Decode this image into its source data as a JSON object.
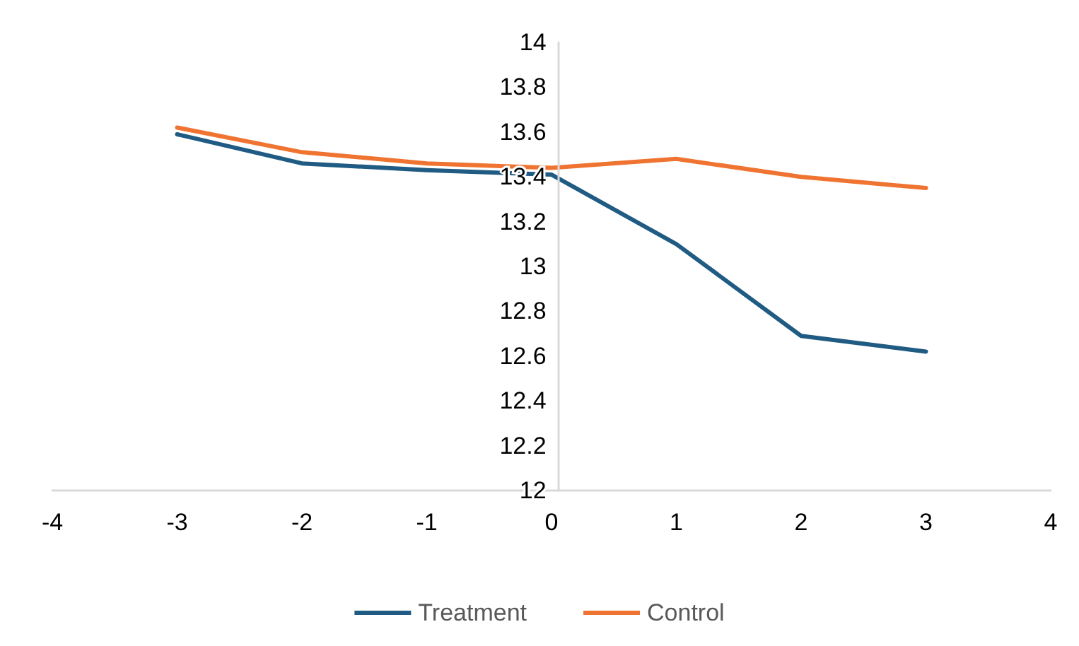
{
  "chart_data": {
    "type": "line",
    "x": [
      -3,
      -2,
      -1,
      0,
      1,
      2,
      3
    ],
    "series": [
      {
        "name": "Treatment",
        "color": "#1f5b82",
        "values": [
          13.59,
          13.46,
          13.43,
          13.41,
          13.1,
          12.69,
          12.62
        ]
      },
      {
        "name": "Control",
        "color": "#f07431",
        "values": [
          13.62,
          13.51,
          13.46,
          13.44,
          13.48,
          13.4,
          13.35
        ]
      }
    ],
    "xlim": [
      -4,
      4
    ],
    "xticks": [
      -4,
      -3,
      -2,
      -1,
      0,
      1,
      2,
      3,
      4
    ],
    "ylim": [
      12,
      14
    ],
    "yticks": [
      12,
      12.2,
      12.4,
      12.6,
      12.8,
      13,
      13.2,
      13.4,
      13.6,
      13.8,
      14
    ],
    "grid": false,
    "legend": "bottom",
    "marker": "none",
    "line_style": "solid"
  }
}
